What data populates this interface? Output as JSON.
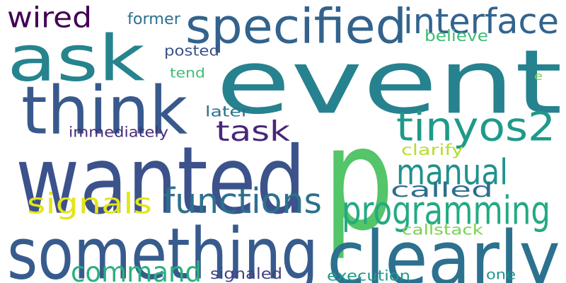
{
  "words": [
    {
      "text": "event",
      "color": "#26828e"
    },
    {
      "text": "p",
      "color": "#54c568"
    },
    {
      "text": "ask",
      "color": "#25848e"
    },
    {
      "text": "wanted",
      "color": "#3b528b"
    },
    {
      "text": "something",
      "color": "#375b8d"
    },
    {
      "text": "clearly",
      "color": "#2c718e"
    },
    {
      "text": "think",
      "color": "#38598c"
    },
    {
      "text": "specified",
      "color": "#33638d"
    },
    {
      "text": "interface",
      "color": "#32648e"
    },
    {
      "text": "tinyos2",
      "color": "#1f9a8a"
    },
    {
      "text": "programming",
      "color": "#24aa83"
    },
    {
      "text": "functions",
      "color": "#2d708e"
    },
    {
      "text": "manual",
      "color": "#21918c"
    },
    {
      "text": "command",
      "color": "#2ab07f"
    },
    {
      "text": "task",
      "color": "#482878"
    },
    {
      "text": "signals",
      "color": "#e5e419"
    },
    {
      "text": "wired",
      "color": "#440154"
    },
    {
      "text": "called",
      "color": "#2e6e8e"
    },
    {
      "text": "former",
      "color": "#2d708e"
    },
    {
      "text": "believe",
      "color": "#3dbc74"
    },
    {
      "text": "posted",
      "color": "#3b528b"
    },
    {
      "text": "tend",
      "color": "#3dbc74"
    },
    {
      "text": "later",
      "color": "#2c728e"
    },
    {
      "text": "immediately",
      "color": "#472c7a"
    },
    {
      "text": "clarify",
      "color": "#b5de2b"
    },
    {
      "text": "callstack",
      "color": "#7ad151"
    },
    {
      "text": "signaled",
      "color": "#424086"
    },
    {
      "text": "execution",
      "color": "#1e9b8a"
    },
    {
      "text": "one",
      "color": "#1f958b"
    },
    {
      "text": "e",
      "color": "#75d054"
    }
  ]
}
